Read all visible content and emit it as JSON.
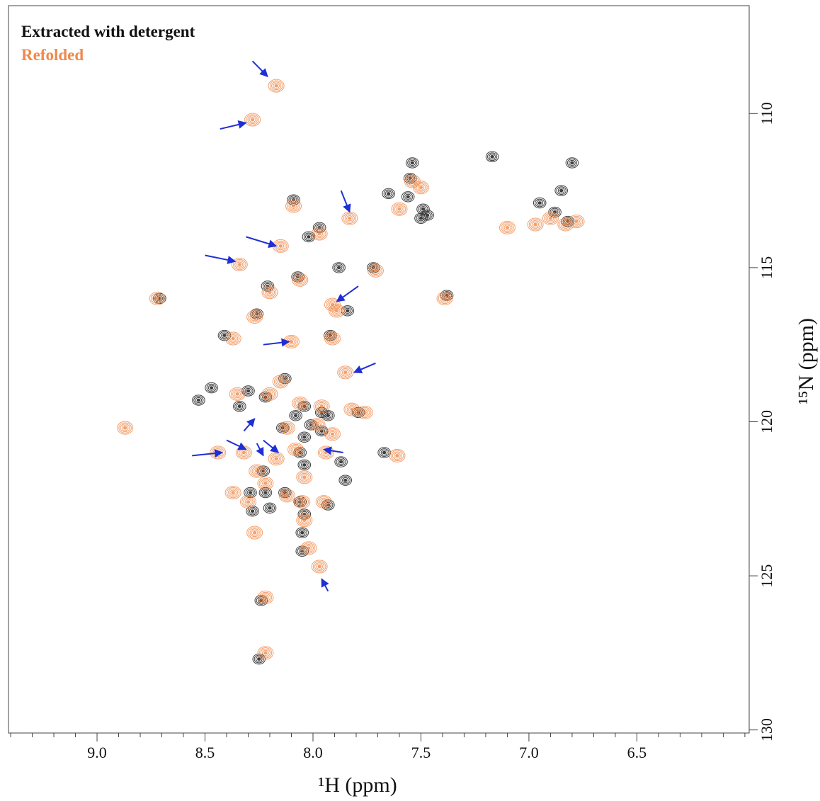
{
  "chart_data": {
    "type": "scatter",
    "x_label": "¹H (ppm)",
    "y_label": "¹⁵N (ppm)",
    "xlim": [
      9.41,
      5.98
    ],
    "ylim": [
      106.5,
      130.1
    ],
    "xticks": [
      {
        "value": 9,
        "label": "9.0"
      },
      {
        "value": 8.5,
        "label": "8.5"
      },
      {
        "value": 8,
        "label": "8.0"
      },
      {
        "value": 7.5,
        "label": "7.5"
      },
      {
        "value": 7,
        "label": "7.0"
      },
      {
        "value": 6.5,
        "label": "6.5"
      }
    ],
    "xminorticks": [
      9.4,
      9.3,
      9.2,
      9.1,
      8.9,
      8.8,
      8.7,
      8.6,
      8.4,
      8.3,
      8.2,
      8.1,
      7.9,
      7.8,
      7.7,
      7.6,
      7.4,
      7.3,
      7.2,
      7.1,
      6.9,
      6.8,
      6.7,
      6.6,
      6.4,
      6.3,
      6.2,
      6.1,
      6.0
    ],
    "yticks": [
      110,
      115,
      120,
      125,
      130
    ],
    "arrow_color": "#1f2fd6",
    "annotations": [
      {
        "from": [
          8.28,
          108.3
        ],
        "to": [
          8.21,
          108.8
        ]
      },
      {
        "from": [
          8.43,
          110.5
        ],
        "to": [
          8.31,
          110.3
        ]
      },
      {
        "from": [
          7.87,
          112.5
        ],
        "to": [
          7.83,
          113.2
        ]
      },
      {
        "from": [
          8.31,
          114.0
        ],
        "to": [
          8.17,
          114.3
        ]
      },
      {
        "from": [
          8.5,
          114.6
        ],
        "to": [
          8.36,
          114.8
        ]
      },
      {
        "from": [
          7.79,
          115.6
        ],
        "to": [
          7.89,
          116.1
        ]
      },
      {
        "from": [
          8.23,
          117.5
        ],
        "to": [
          8.11,
          117.4
        ]
      },
      {
        "from": [
          7.71,
          118.1
        ],
        "to": [
          7.81,
          118.4
        ]
      },
      {
        "from": [
          8.32,
          120.3
        ],
        "to": [
          8.27,
          119.9
        ]
      },
      {
        "from": [
          8.56,
          121.1
        ],
        "to": [
          8.42,
          121.0
        ]
      },
      {
        "from": [
          8.4,
          120.6
        ],
        "to": [
          8.31,
          120.9
        ]
      },
      {
        "from": [
          8.26,
          120.7
        ],
        "to": [
          8.23,
          121.1
        ]
      },
      {
        "from": [
          8.23,
          120.6
        ],
        "to": [
          8.16,
          121.0
        ]
      },
      {
        "from": [
          7.86,
          121.0
        ],
        "to": [
          7.95,
          120.9
        ]
      },
      {
        "from": [
          7.93,
          125.5
        ],
        "to": [
          7.96,
          125.1
        ]
      }
    ],
    "series": [
      {
        "name": "Extracted with detergent",
        "color": "#2b2b2b",
        "x": [
          8.71,
          7.54,
          7.17,
          6.8,
          7.55,
          7.65,
          7.56,
          7.49,
          7.47,
          8.09,
          8.02,
          7.97,
          8.07,
          7.72,
          7.38,
          8.21,
          7.88,
          8.41,
          8.26,
          7.84,
          7.92,
          8.47,
          8.3,
          8.13,
          8.34,
          8.22,
          8.04,
          8.14,
          8.01,
          7.93,
          8.06,
          7.87,
          8.04,
          7.96,
          8.23,
          8.22,
          8.29,
          8.2,
          8.13,
          8.04,
          8.05,
          8.05,
          8.24,
          8.25,
          8.53,
          6.85,
          6.88,
          6.82,
          6.95,
          7.67,
          7.5,
          7.96,
          8.08,
          8.06,
          7.93,
          7.85,
          8.04,
          7.79,
          8.28
        ],
        "values": [
          116.0,
          111.6,
          111.4,
          111.6,
          112.1,
          112.6,
          112.7,
          113.1,
          113.3,
          112.8,
          114.0,
          113.7,
          115.3,
          115.0,
          115.9,
          115.6,
          115.0,
          117.2,
          116.5,
          116.4,
          117.2,
          118.9,
          119.0,
          118.6,
          119.5,
          119.2,
          119.5,
          120.2,
          120.1,
          119.8,
          121.0,
          121.3,
          121.4,
          120.3,
          121.6,
          122.3,
          122.3,
          122.8,
          122.3,
          123.0,
          123.6,
          124.2,
          125.8,
          127.7,
          119.3,
          112.5,
          113.2,
          113.5,
          112.9,
          121.0,
          113.4,
          119.7,
          119.8,
          122.6,
          122.7,
          121.9,
          120.5,
          119.7,
          122.9
        ]
      },
      {
        "name": "Refolded",
        "color": "#f0894a",
        "x": [
          8.72,
          7.54,
          7.5,
          8.09,
          7.97,
          8.06,
          7.71,
          7.39,
          8.2,
          8.37,
          8.27,
          7.89,
          7.91,
          8.17,
          8.28,
          7.83,
          8.15,
          8.34,
          7.91,
          8.1,
          7.85,
          7.97,
          8.22,
          8.22,
          8.44,
          8.32,
          8.26,
          8.17,
          7.94,
          8.37,
          8.3,
          8.22,
          8.12,
          8.05,
          7.95,
          8.04,
          8.02,
          8.35,
          8.2,
          8.06,
          7.98,
          7.91,
          8.08,
          8.12,
          7.82,
          7.76,
          6.97,
          6.9,
          6.83,
          6.78,
          8.87,
          7.1,
          7.61,
          7.6,
          8.04,
          8.27,
          7.96,
          8.15
        ],
        "values": [
          116.0,
          112.2,
          112.4,
          113.0,
          113.9,
          115.4,
          115.1,
          116.0,
          115.8,
          117.3,
          116.6,
          116.4,
          117.3,
          109.1,
          110.2,
          113.4,
          114.3,
          114.9,
          116.2,
          117.4,
          118.4,
          124.7,
          125.7,
          127.5,
          121.0,
          121.0,
          121.6,
          121.2,
          121.0,
          122.3,
          122.6,
          122.0,
          122.4,
          122.6,
          122.6,
          123.2,
          124.1,
          119.1,
          119.1,
          119.4,
          120.1,
          120.4,
          120.9,
          120.2,
          119.6,
          119.7,
          113.6,
          113.4,
          113.6,
          113.5,
          120.2,
          113.7,
          121.1,
          113.1,
          121.8,
          123.6,
          119.5,
          118.7
        ]
      }
    ]
  }
}
